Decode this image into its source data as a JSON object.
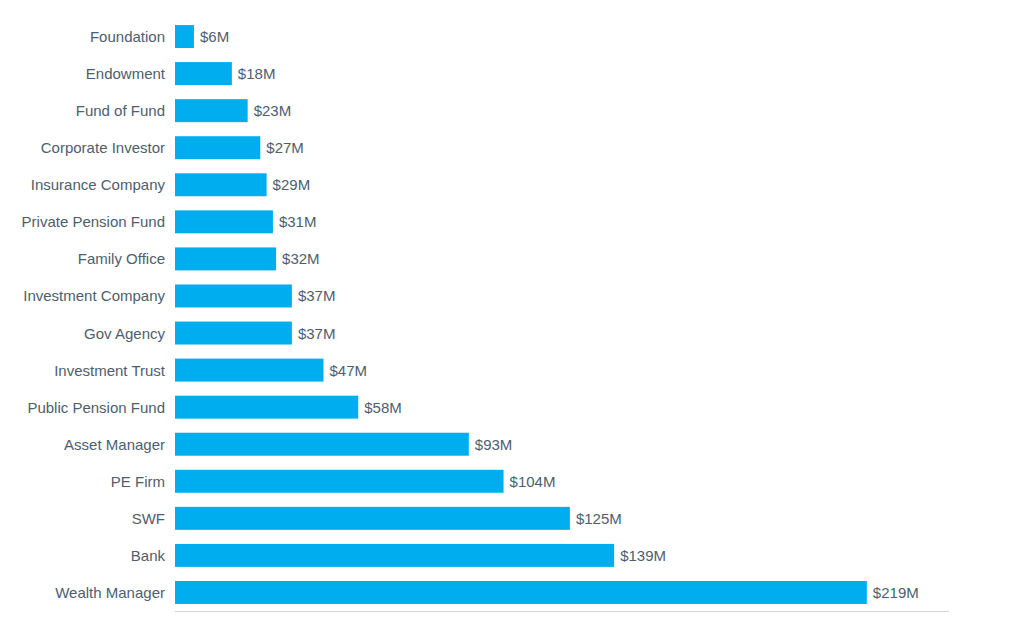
{
  "chart_data": {
    "type": "bar",
    "orientation": "horizontal",
    "categories": [
      "Foundation",
      "Endowment",
      "Fund of Fund",
      "Corporate Investor",
      "Insurance Company",
      "Private Pension Fund",
      "Family Office",
      "Investment Company",
      "Gov Agency",
      "Investment Trust",
      "Public Pension Fund",
      "Asset Manager",
      "PE Firm",
      "SWF",
      "Bank",
      "Wealth Manager"
    ],
    "values": [
      6,
      18,
      23,
      27,
      29,
      31,
      32,
      37,
      37,
      47,
      58,
      93,
      104,
      125,
      139,
      219
    ],
    "value_labels": [
      "$6M",
      "$18M",
      "$23M",
      "$27M",
      "$29M",
      "$31M",
      "$32M",
      "$37M",
      "$37M",
      "$47M",
      "$58M",
      "$93M",
      "$104M",
      "$125M",
      "$139M",
      "$219M"
    ],
    "data_labels": true,
    "color": "#00AEEF",
    "xlim": [
      0,
      245
    ],
    "tick_labels": "y",
    "grid": false
  }
}
